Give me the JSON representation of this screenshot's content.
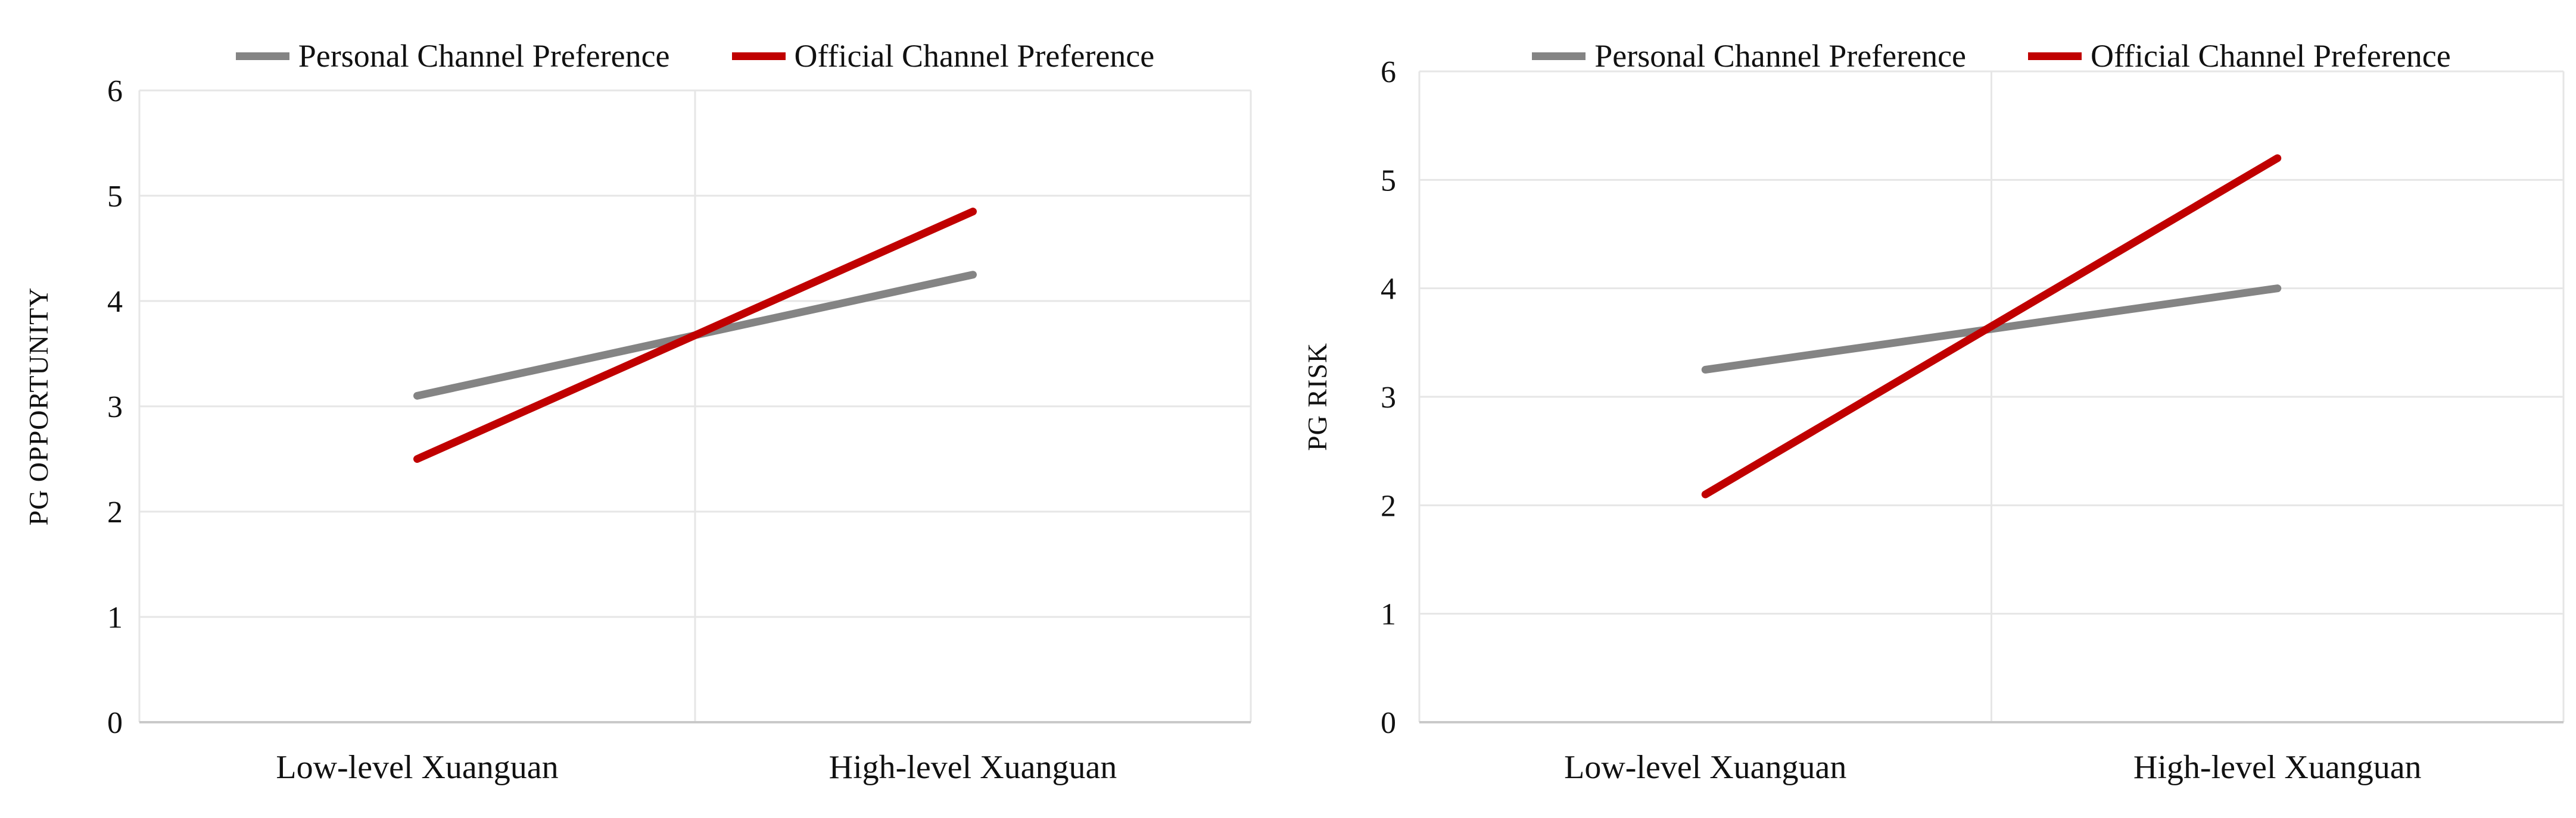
{
  "figure": {
    "background": "#ffffff",
    "description_visible_text_only": true
  },
  "style": {
    "gridline_color": "#E6E6E6",
    "axis_line_color": "#C9C9C9",
    "text_color": "#111111"
  },
  "chart_data": [
    {
      "type": "line",
      "title": "",
      "xlabel": "",
      "ylabel": "PG OPPORTUNITY",
      "categories": [
        "Low-level Xuanguan",
        "High-level Xuanguan"
      ],
      "series": [
        {
          "name": "Personal Channel Preference",
          "color": "#848484",
          "values": [
            3.1,
            4.25
          ]
        },
        {
          "name": "Official Channel Preference",
          "color": "#C00000",
          "values": [
            2.5,
            4.85
          ]
        }
      ],
      "ylim": [
        0,
        6
      ],
      "yticks": [
        0,
        1,
        2,
        3,
        4,
        5,
        6
      ],
      "grid": true,
      "legend_position": "top"
    },
    {
      "type": "line",
      "title": "",
      "xlabel": "",
      "ylabel": "PG RISK",
      "categories": [
        "Low-level Xuanguan",
        "High-level Xuanguan"
      ],
      "series": [
        {
          "name": "Personal Channel Preference",
          "color": "#848484",
          "values": [
            3.25,
            4.0
          ]
        },
        {
          "name": "Official Channel Preference",
          "color": "#C00000",
          "values": [
            2.1,
            5.2
          ]
        }
      ],
      "ylim": [
        0,
        6
      ],
      "yticks": [
        0,
        1,
        2,
        3,
        4,
        5,
        6
      ],
      "grid": true,
      "legend_position": "top"
    }
  ]
}
